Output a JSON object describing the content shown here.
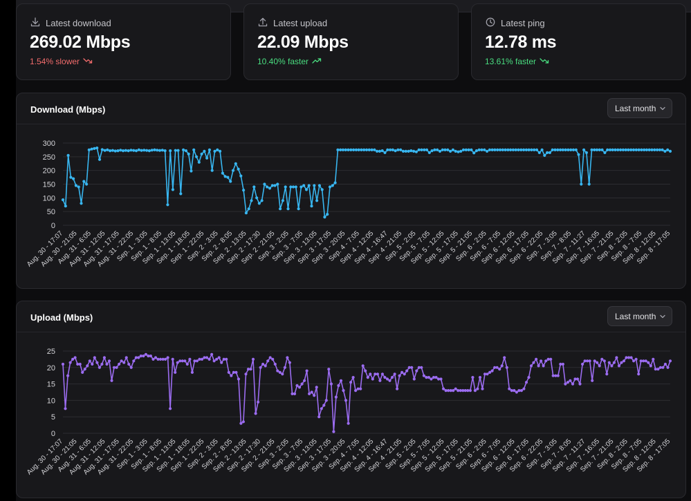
{
  "stats": {
    "download": {
      "label": "Latest download",
      "value": "269.02 Mbps",
      "change": "1.54% slower",
      "icon": "download-icon",
      "trend_icon": "trending-down-icon"
    },
    "upload": {
      "label": "Latest upload",
      "value": "22.09 Mbps",
      "change": "10.40% faster",
      "icon": "upload-icon",
      "trend_icon": "trending-up-icon"
    },
    "ping": {
      "label": "Latest ping",
      "value": "12.78 ms",
      "change": "13.61% faster",
      "icon": "clock-icon",
      "trend_icon": "trending-down-icon"
    }
  },
  "colors": {
    "negative": "#f26c6c",
    "positive": "#4ade80",
    "download_line": "#38b6f0",
    "upload_line": "#9b6cf0"
  },
  "x_ticks": [
    "Aug. 30 - 17:07",
    "Aug. 30 - 21:05",
    "Aug. 31 - 6:05",
    "Aug. 31 - 12:05",
    "Aug. 31 - 17:05",
    "Aug. 31 - 22:05",
    "Sep. 1 - 3:05",
    "Sep. 1 - 8:05",
    "Sep. 1 - 13:05",
    "Sep. 1 - 18:05",
    "Sep. 1 - 22:05",
    "Sep. 2 - 3:05",
    "Sep. 2 - 8:05",
    "Sep. 2 - 13:05",
    "Sep. 2 - 17:30",
    "Sep. 2 - 21:05",
    "Sep. 3 - 2:05",
    "Sep. 3 - 7:05",
    "Sep. 3 - 13:05",
    "Sep. 3 - 17:05",
    "Sep. 3 - 20:05",
    "Sep. 4 - 7:05",
    "Sep. 4 - 12:05",
    "Sep. 4 - 16:47",
    "Sep. 4 - 21:05",
    "Sep. 5 - 2:05",
    "Sep. 5 - 7:05",
    "Sep. 5 - 12:05",
    "Sep. 5 - 17:05",
    "Sep. 5 - 21:05",
    "Sep. 6 - 2:05",
    "Sep. 6 - 7:05",
    "Sep. 6 - 12:05",
    "Sep. 6 - 17:05",
    "Sep. 6 - 22:05",
    "Sep. 7 - 3:05",
    "Sep. 7 - 8:05",
    "Sep. 7 - 11:27",
    "Sep. 7 - 16:05",
    "Sep. 7 - 21:05",
    "Sep. 8 - 2:05",
    "Sep. 8 - 7:05",
    "Sep. 8 - 12:05",
    "Sep. 8 - 17:05"
  ],
  "chart_data": [
    {
      "type": "line",
      "title": "Download (Mbps)",
      "range_select": "Last month",
      "ylim": [
        0,
        300
      ],
      "yticks": [
        0,
        50,
        100,
        150,
        200,
        250,
        300
      ],
      "grid": true,
      "series": [
        {
          "values": [
            93,
            70,
            255,
            175,
            170,
            145,
            140,
            80,
            160,
            150,
            275,
            278,
            280,
            282,
            240,
            276,
            273,
            275,
            272,
            273,
            271,
            272,
            274,
            272,
            273,
            272,
            274,
            273,
            272,
            275,
            273,
            274,
            273,
            272,
            274,
            275,
            274,
            273,
            274,
            272,
            75,
            272,
            130,
            273,
            273,
            115,
            275,
            272,
            260,
            198,
            275,
            250,
            230,
            260,
            270,
            245,
            275,
            200,
            270,
            275,
            270,
            190,
            178,
            175,
            160,
            200,
            225,
            205,
            180,
            128,
            45,
            60,
            90,
            140,
            100,
            80,
            90,
            150,
            140,
            135,
            145,
            145,
            150,
            60,
            90,
            140,
            60,
            140,
            140,
            140,
            60,
            140,
            145,
            130,
            145,
            70,
            145,
            90,
            145,
            130,
            30,
            40,
            140,
            145,
            155,
            275,
            275,
            275,
            275,
            275,
            275,
            275,
            275,
            275,
            275,
            275,
            275,
            275,
            275,
            275,
            270,
            270,
            272,
            265,
            275,
            275,
            275,
            272,
            275,
            275,
            270,
            270,
            270,
            272,
            270,
            268,
            275,
            275,
            275,
            275,
            265,
            272,
            275,
            275,
            270,
            275,
            275,
            275,
            270,
            275,
            270,
            268,
            270,
            275,
            275,
            275,
            275,
            264,
            272,
            275,
            275,
            275,
            270,
            275,
            275,
            275,
            275,
            275,
            275,
            275,
            275,
            275,
            275,
            275,
            275,
            275,
            275,
            275,
            275,
            275,
            275,
            275,
            265,
            275,
            255,
            265,
            265,
            275,
            275,
            275,
            275,
            275,
            275,
            275,
            275,
            275,
            275,
            258,
            150,
            275,
            265,
            150,
            275,
            275,
            275,
            275,
            275,
            265,
            275,
            275,
            275,
            275,
            275,
            275,
            275,
            275,
            275,
            275,
            275,
            275,
            275,
            275,
            275,
            275,
            275,
            275,
            275,
            275,
            275,
            275,
            270,
            275,
            270
          ]
        }
      ]
    },
    {
      "type": "line",
      "title": "Upload (Mbps)",
      "range_select": "Last month",
      "ylim": [
        0,
        25
      ],
      "yticks": [
        0,
        5,
        10,
        15,
        20,
        25
      ],
      "grid": true,
      "series": [
        {
          "values": [
            21,
            7.5,
            17.5,
            21.5,
            22.5,
            23,
            21,
            21,
            18.5,
            19.5,
            20.5,
            22,
            21,
            23,
            21.5,
            20,
            21,
            23,
            21,
            22,
            16,
            20,
            20,
            21,
            22,
            21.5,
            23,
            21,
            20,
            22,
            23,
            23,
            23.5,
            23.5,
            24,
            23.5,
            23.5,
            22.5,
            23,
            22.5,
            22.5,
            22.5,
            22.5,
            23,
            7.5,
            22.5,
            18.5,
            21.5,
            22,
            22,
            22,
            21,
            22.5,
            18.5,
            22,
            22,
            22.5,
            22.5,
            23,
            23,
            22.5,
            24,
            22,
            22.5,
            23,
            21.5,
            22.5,
            22.5,
            18.5,
            17.5,
            18.5,
            18.5,
            16.5,
            3,
            3.5,
            18,
            19.5,
            19.5,
            22.5,
            6,
            9.5,
            20,
            21,
            20.5,
            22,
            23,
            22.5,
            21,
            19,
            18.5,
            18,
            20,
            23,
            21.5,
            12,
            12,
            14.5,
            14,
            15,
            16,
            19,
            12,
            12.5,
            11.5,
            14,
            5,
            7.5,
            8.5,
            10,
            19.5,
            15,
            0.5,
            11,
            14.5,
            16,
            13,
            10,
            3,
            15.5,
            17,
            13,
            13.5,
            13.5,
            20.5,
            19,
            17,
            18,
            16.5,
            18,
            18,
            16,
            18,
            17,
            16.5,
            16,
            17,
            18,
            13.5,
            17.5,
            18.5,
            18,
            19,
            20,
            20,
            16.5,
            19,
            20,
            20,
            17.5,
            17,
            17,
            16.5,
            17,
            17,
            16.5,
            16.5,
            13.5,
            13,
            13,
            13,
            13,
            13.5,
            13,
            13,
            13,
            13,
            13,
            13,
            17,
            13,
            13.5,
            17,
            13.5,
            18,
            18,
            18.5,
            19,
            20,
            20,
            19.5,
            20.5,
            23,
            20,
            13.5,
            13,
            13,
            12.5,
            13,
            13,
            13.5,
            15.5,
            17,
            20.5,
            21.5,
            22.5,
            20.5,
            22,
            20.5,
            22,
            22.5,
            22.5,
            17.5,
            17.5,
            17.5,
            21,
            21,
            15,
            15.5,
            16,
            15,
            16.5,
            16.5,
            15,
            21,
            22,
            22,
            22,
            16,
            22,
            21.5,
            20.5,
            22.5,
            22,
            18,
            21.5,
            20.5,
            21.5,
            23,
            20.5,
            21.5,
            22,
            23,
            23,
            23,
            22,
            22.5,
            18,
            22,
            22,
            22,
            21.5,
            20.5,
            22.5,
            19.5,
            19.5,
            20,
            20,
            21,
            20,
            22
          ]
        }
      ]
    }
  ]
}
